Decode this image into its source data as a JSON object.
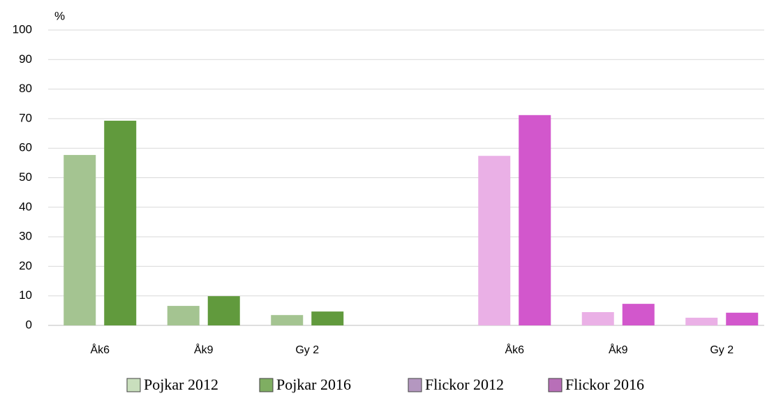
{
  "chart_data": {
    "type": "bar",
    "y_label": "%",
    "categories": [
      "Åk6",
      "Åk9",
      "Gy 2",
      null,
      "Åk6",
      "Åk9",
      "Gy 2"
    ],
    "series": [
      {
        "name": "Pojkar 2012",
        "color": "#a4c491",
        "legend_color": "#c9dfbd",
        "values": [
          57.7,
          6.6,
          3.5,
          null,
          null,
          null,
          null
        ]
      },
      {
        "name": "Pojkar 2016",
        "color": "#619a3d",
        "legend_color": "#7fae62",
        "values": [
          69.3,
          9.9,
          4.7,
          null,
          null,
          null,
          null
        ]
      },
      {
        "name": "Flickor 2012",
        "color": "#eab0e6",
        "legend_color": "#b497c0",
        "values": [
          null,
          null,
          null,
          null,
          57.4,
          4.5,
          2.6
        ]
      },
      {
        "name": "Flickor 2016",
        "color": "#d257cc",
        "legend_color": "#b86fb8",
        "values": [
          null,
          null,
          null,
          null,
          71.2,
          7.3,
          4.3
        ]
      }
    ],
    "ylim": [
      0,
      100
    ],
    "yticks": [
      0,
      10,
      20,
      30,
      40,
      50,
      60,
      70,
      80,
      90,
      100
    ],
    "grid": true
  }
}
